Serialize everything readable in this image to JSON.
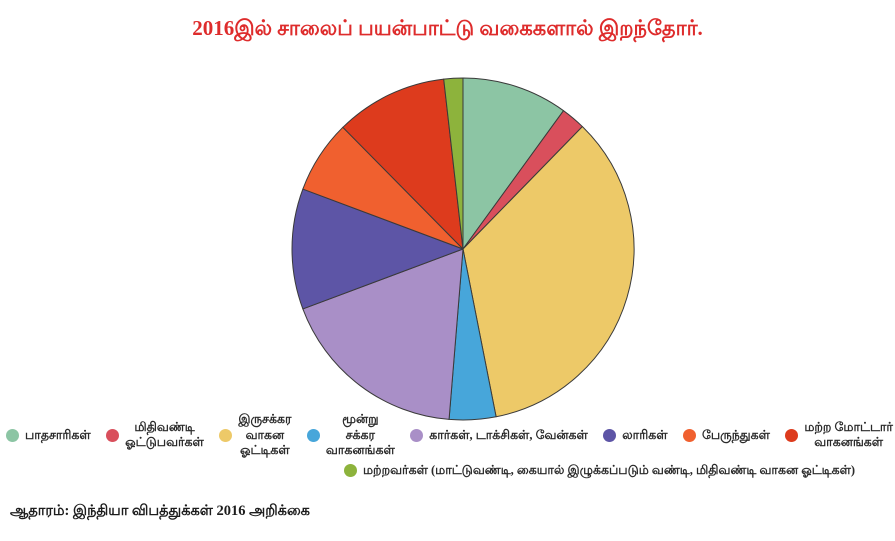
{
  "title": {
    "text": "2016இல் சாலைப் பயன்பாட்டு வகைகளால் இறந்தோர்.",
    "color": "#de2c2c"
  },
  "source": "ஆதாரம்: இந்தியா விபத்துக்கள் 2016 அறிக்கை",
  "chart_data": {
    "type": "pie",
    "title": "2016இல் சாலைப் பயன்பாட்டு வகைகளால் இறந்தோர்.",
    "values_are": "estimated percent of total, read from slice angles (no numeric labels printed on chart)",
    "start_angle_deg": 0,
    "direction": "clockwise",
    "stroke_color": "#3a3a3a",
    "legend_position": "bottom",
    "legend_wrap_index": 8,
    "slices": [
      {
        "name": "pedestrians",
        "label": "பாதசாரிகள்",
        "value": 10.0,
        "color": "#8cc5a4"
      },
      {
        "name": "cyclists",
        "label": "மிதிவண்டி\nஓட்டுபவர்கள்",
        "value": 2.3,
        "color": "#d94f5c"
      },
      {
        "name": "two-wheeler-riders",
        "label": "இருசக்கர\nவாகன\nஓட்டிகள்",
        "value": 34.6,
        "color": "#edc968"
      },
      {
        "name": "three-wheelers",
        "label": "மூன்று\nசக்கர\nவாகனங்கள்",
        "value": 4.4,
        "color": "#47a6da"
      },
      {
        "name": "cars-taxis-vans",
        "label": "கார்கள், டாக்சிகள், வேன்கள்",
        "value": 18.0,
        "color": "#a98fc7"
      },
      {
        "name": "lorries",
        "label": "லாரிகள்",
        "value": 11.4,
        "color": "#5d55a6"
      },
      {
        "name": "buses",
        "label": "பேருந்துகள்",
        "value": 6.9,
        "color": "#f0602f"
      },
      {
        "name": "other-motor-vehicles",
        "label": "மற்ற மோட்டார்\nவாகனங்கள்",
        "value": 10.6,
        "color": "#dd3b1d"
      },
      {
        "name": "others",
        "label": "மற்றவர்கள் (மாட்டுவண்டி, கையால் இழுக்கப்படும் வண்டி, மிதிவண்டி வாகன ஓட்டிகள்)",
        "value": 1.8,
        "color": "#8db33c"
      }
    ]
  }
}
